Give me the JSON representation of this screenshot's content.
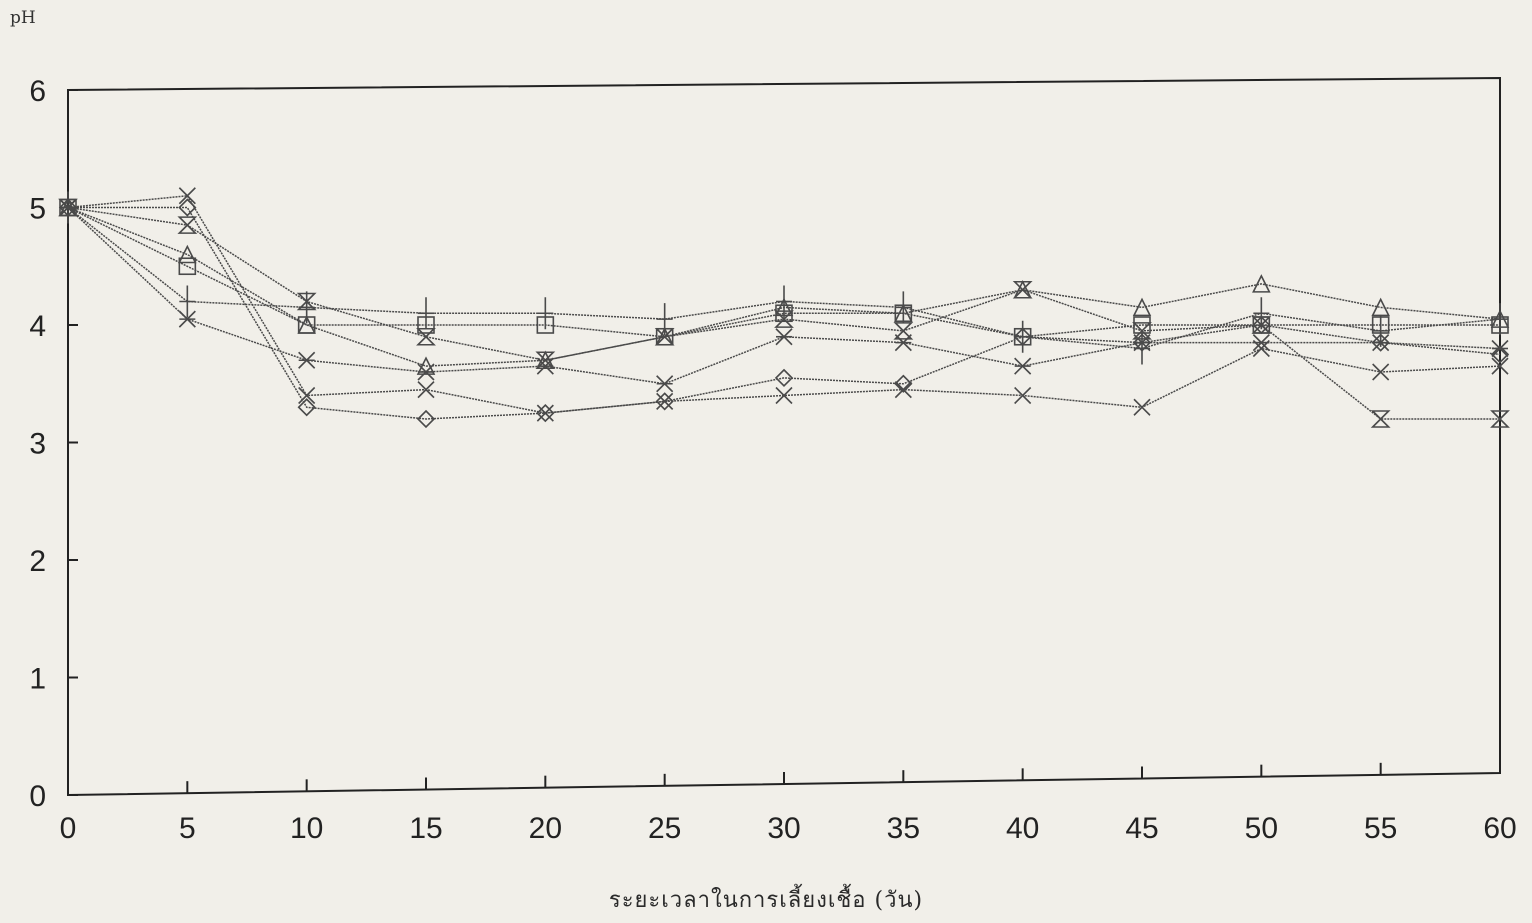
{
  "chart_data": {
    "type": "line",
    "title": "",
    "ylabel": "pH",
    "xlabel": "ระยะเวลาในการเลี้ยงเชื้อ (วัน)",
    "xlim": [
      0,
      60
    ],
    "ylim": [
      0,
      6
    ],
    "xticks": [
      0,
      5,
      10,
      15,
      20,
      25,
      30,
      35,
      40,
      45,
      50,
      55,
      60
    ],
    "yticks": [
      0,
      1,
      2,
      3,
      4,
      5,
      6
    ],
    "grid": false,
    "legend": "none",
    "x": [
      0,
      5,
      10,
      15,
      20,
      25,
      30,
      35,
      40,
      45,
      50,
      55,
      60
    ],
    "series": [
      {
        "marker": "square",
        "values": [
          5.0,
          4.5,
          4.0,
          4.0,
          4.0,
          3.9,
          4.1,
          4.1,
          3.9,
          4.0,
          4.0,
          4.0,
          4.0
        ]
      },
      {
        "marker": "plus",
        "values": [
          5.0,
          4.2,
          4.15,
          4.1,
          4.1,
          4.05,
          4.2,
          4.15,
          3.9,
          3.8,
          4.1,
          3.95,
          4.05
        ]
      },
      {
        "marker": "diamond",
        "values": [
          5.0,
          5.0,
          3.3,
          3.2,
          3.25,
          3.35,
          3.55,
          3.5,
          3.9,
          3.85,
          4.0,
          3.85,
          3.75
        ]
      },
      {
        "marker": "triangle",
        "values": [
          5.0,
          4.6,
          4.0,
          3.65,
          3.7,
          3.9,
          4.15,
          4.1,
          4.3,
          4.15,
          4.35,
          4.15,
          4.05
        ]
      },
      {
        "marker": "x",
        "values": [
          5.0,
          5.1,
          3.4,
          3.45,
          3.25,
          3.35,
          3.4,
          3.45,
          3.4,
          3.3,
          3.8,
          3.6,
          3.65
        ]
      },
      {
        "marker": "star",
        "values": [
          5.0,
          4.05,
          3.7,
          3.6,
          3.65,
          3.5,
          3.9,
          3.85,
          3.65,
          3.85,
          3.85,
          3.85,
          3.8
        ]
      },
      {
        "marker": "hourglass",
        "values": [
          5.0,
          4.85,
          4.2,
          3.9,
          3.7,
          3.9,
          4.05,
          3.95,
          4.3,
          3.95,
          4.0,
          3.2,
          3.2
        ]
      }
    ],
    "colors": {
      "line": "#4a4a4a",
      "axis": "#222222",
      "background": "#f1efe9"
    }
  }
}
